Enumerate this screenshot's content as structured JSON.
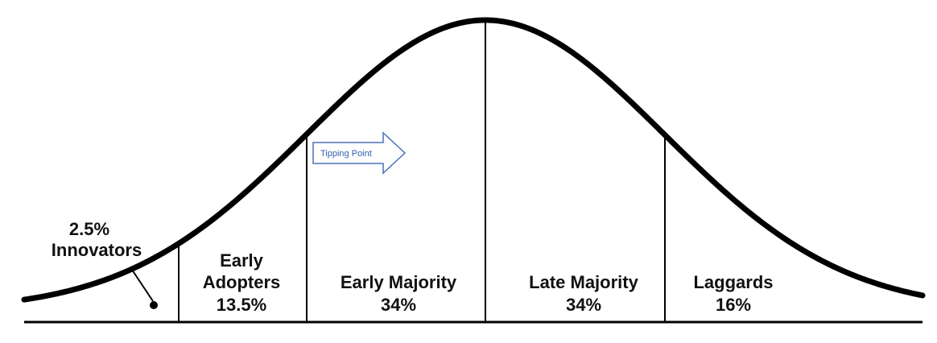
{
  "colors": {
    "curve": "#000000",
    "text": "#111111",
    "arrow_stroke": "#4a72b8",
    "arrow_text": "#2f5fb0"
  },
  "segments": {
    "innovators": {
      "percent": "2.5%",
      "name": "Innovators"
    },
    "early_adopters": {
      "line1": "Early",
      "line2": "Adopters",
      "percent": "13.5%"
    },
    "early_majority": {
      "name": "Early Majority",
      "percent": "34%"
    },
    "late_majority": {
      "name": "Late Majority",
      "percent": "34%"
    },
    "laggards": {
      "name": "Laggards",
      "percent": "16%"
    }
  },
  "tipping_point": {
    "label": "Tipping Point"
  }
}
